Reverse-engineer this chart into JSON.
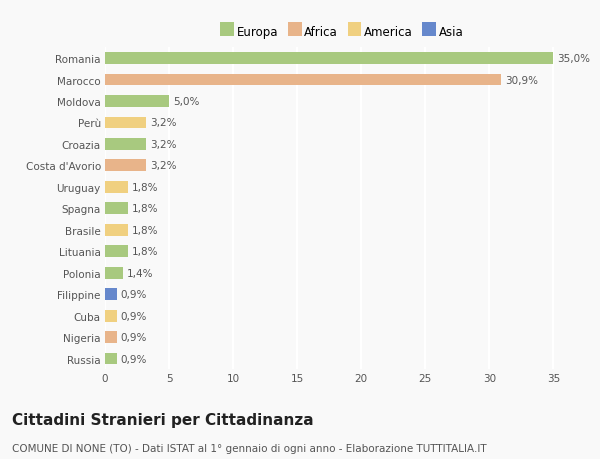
{
  "categories": [
    "Romania",
    "Marocco",
    "Moldova",
    "Perù",
    "Croazia",
    "Costa d'Avorio",
    "Uruguay",
    "Spagna",
    "Brasile",
    "Lituania",
    "Polonia",
    "Filippine",
    "Cuba",
    "Nigeria",
    "Russia"
  ],
  "values": [
    35.0,
    30.9,
    5.0,
    3.2,
    3.2,
    3.2,
    1.8,
    1.8,
    1.8,
    1.8,
    1.4,
    0.9,
    0.9,
    0.9,
    0.9
  ],
  "labels": [
    "35,0%",
    "30,9%",
    "5,0%",
    "3,2%",
    "3,2%",
    "3,2%",
    "1,8%",
    "1,8%",
    "1,8%",
    "1,8%",
    "1,4%",
    "0,9%",
    "0,9%",
    "0,9%",
    "0,9%"
  ],
  "continents": [
    "Europa",
    "Africa",
    "Europa",
    "America",
    "Europa",
    "Africa",
    "America",
    "Europa",
    "America",
    "Europa",
    "Europa",
    "Asia",
    "America",
    "Africa",
    "Europa"
  ],
  "continent_colors": {
    "Europa": "#a8c97f",
    "Africa": "#e8b48a",
    "America": "#f0d080",
    "Asia": "#6688cc"
  },
  "legend_items": [
    "Europa",
    "Africa",
    "America",
    "Asia"
  ],
  "legend_colors": [
    "#a8c97f",
    "#e8b48a",
    "#f0d080",
    "#6688cc"
  ],
  "xlim": [
    0,
    37
  ],
  "xticks": [
    0,
    5,
    10,
    15,
    20,
    25,
    30,
    35
  ],
  "title": "Cittadini Stranieri per Cittadinanza",
  "subtitle": "COMUNE DI NONE (TO) - Dati ISTAT al 1° gennaio di ogni anno - Elaborazione TUTTITALIA.IT",
  "background_color": "#f9f9f9",
  "grid_color": "#ffffff",
  "bar_height": 0.55,
  "title_fontsize": 11,
  "subtitle_fontsize": 7.5,
  "label_fontsize": 7.5,
  "tick_fontsize": 7.5,
  "legend_fontsize": 8.5
}
